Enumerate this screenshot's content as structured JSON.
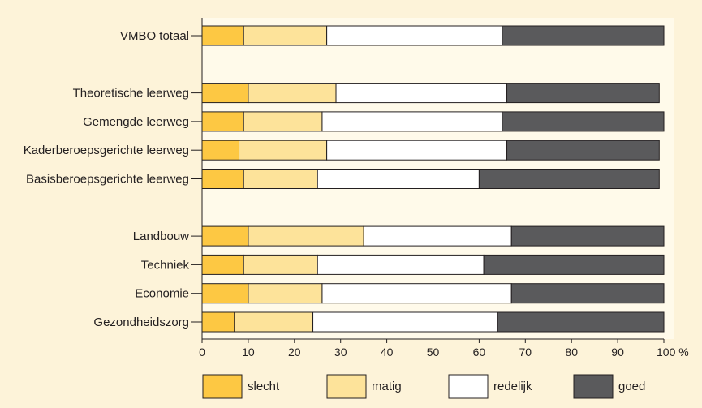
{
  "chart_data": {
    "type": "bar",
    "stacked": true,
    "orientation": "horizontal",
    "categories": [
      "VMBO totaal",
      "",
      "Theoretische leerweg",
      "Gemengde leerweg",
      "Kaderberoepsgerichte leerweg",
      "Basisberoepsgerichte leerweg",
      "",
      "Landbouw",
      "Techniek",
      "Economie",
      "Gezondheidszorg"
    ],
    "series": [
      {
        "name": "slecht",
        "color": "#fdc843",
        "values": [
          9,
          null,
          10,
          9,
          8,
          9,
          null,
          10,
          9,
          10,
          7
        ]
      },
      {
        "name": "matig",
        "color": "#fde39a",
        "values": [
          18,
          null,
          19,
          17,
          19,
          16,
          null,
          25,
          16,
          16,
          17
        ]
      },
      {
        "name": "redelijk",
        "color": "#ffffff",
        "values": [
          38,
          null,
          37,
          39,
          39,
          35,
          null,
          32,
          36,
          41,
          40
        ]
      },
      {
        "name": "goed",
        "color": "#5a5a5c",
        "values": [
          35,
          null,
          33,
          35,
          33,
          39,
          null,
          33,
          39,
          33,
          36
        ]
      }
    ],
    "xlim": [
      0,
      100
    ],
    "xticks": [
      "0",
      "10",
      "20",
      "30",
      "40",
      "50",
      "60",
      "70",
      "80",
      "90",
      "100 %"
    ],
    "legend": "bottom",
    "plot_background": "#fffaea",
    "page_background": "#fdf3d9"
  }
}
